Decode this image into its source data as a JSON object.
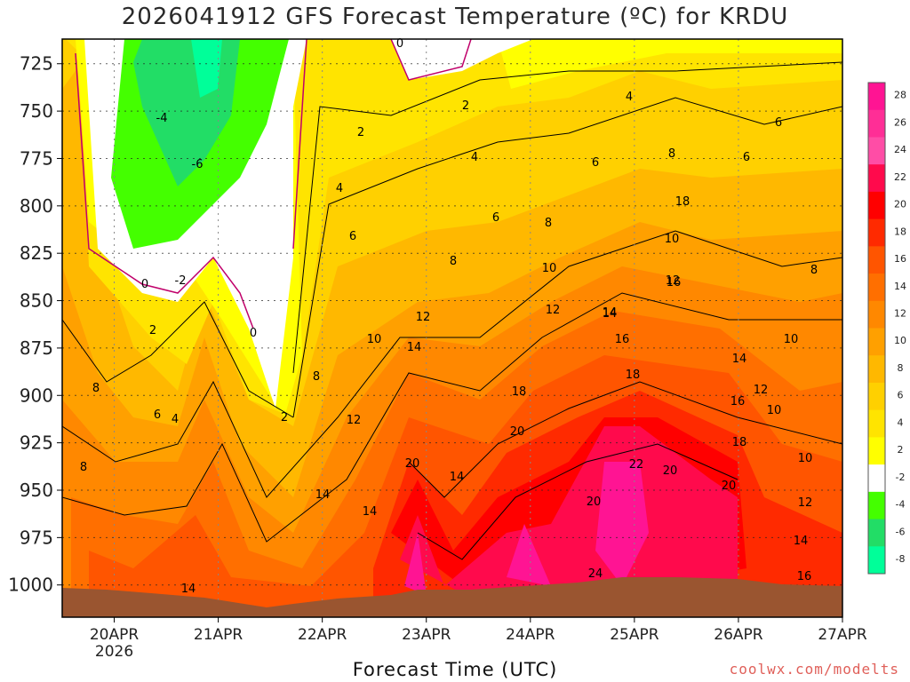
{
  "chart_data": {
    "type": "heatmap",
    "title": "2026041912 GFS Forecast Temperature (ºC) for KRDU",
    "xlabel": "Forecast Time (UTC)",
    "ylabel": "",
    "credit": "coolwx.com/modelts",
    "y_axis": {
      "ticks": [
        725,
        750,
        775,
        800,
        825,
        850,
        875,
        900,
        925,
        950,
        975,
        1000
      ],
      "range": [
        1017,
        712
      ],
      "inverted": true,
      "grid": true
    },
    "x_axis": {
      "ticks": [
        "20APR",
        "21APR",
        "22APR",
        "23APR",
        "24APR",
        "25APR",
        "26APR",
        "27APR"
      ],
      "year_label": "2026",
      "range_days": [
        -0.5,
        7.0
      ],
      "grid": true
    },
    "colorbar": {
      "labels": [
        "28",
        "26",
        "24",
        "22",
        "20",
        "18",
        "16",
        "14",
        "12",
        "10",
        "8",
        "6",
        "4",
        "2",
        "-2",
        "-4",
        "-6",
        "-8"
      ],
      "colors": [
        "#ff1493",
        "#ff2e96",
        "#ff4da6",
        "#ff0a4c",
        "#ff0000",
        "#ff2a00",
        "#ff5500",
        "#ff6f00",
        "#ff8800",
        "#ffa000",
        "#ffb800",
        "#ffd000",
        "#ffe400",
        "#ffff00",
        "#ffffff",
        "#44ff00",
        "#22dd66",
        "#00ff99"
      ]
    },
    "contour_labels": [
      {
        "text": "0"
      },
      {
        "text": "-4"
      },
      {
        "text": "-6"
      },
      {
        "text": "-2"
      },
      {
        "text": "0"
      },
      {
        "text": "2"
      },
      {
        "text": "0"
      },
      {
        "text": "2"
      },
      {
        "text": "2"
      },
      {
        "text": "2"
      },
      {
        "text": "4"
      },
      {
        "text": "6"
      },
      {
        "text": "4"
      },
      {
        "text": "8"
      },
      {
        "text": "6"
      },
      {
        "text": "4"
      },
      {
        "text": "6"
      },
      {
        "text": "8"
      },
      {
        "text": "8"
      },
      {
        "text": "6"
      },
      {
        "text": "10"
      },
      {
        "text": "12"
      },
      {
        "text": "12"
      },
      {
        "text": "14"
      },
      {
        "text": "14"
      },
      {
        "text": "16"
      },
      {
        "text": "18"
      },
      {
        "text": "18"
      },
      {
        "text": "20"
      },
      {
        "text": "20"
      },
      {
        "text": "14"
      },
      {
        "text": "14"
      },
      {
        "text": "10"
      },
      {
        "text": "12"
      },
      {
        "text": "14"
      },
      {
        "text": "16"
      },
      {
        "text": "18"
      },
      {
        "text": "22"
      },
      {
        "text": "20"
      },
      {
        "text": "20"
      },
      {
        "text": "24"
      },
      {
        "text": "20"
      },
      {
        "text": "18"
      },
      {
        "text": "16"
      },
      {
        "text": "14"
      },
      {
        "text": "12"
      },
      {
        "text": "10"
      },
      {
        "text": "10"
      },
      {
        "text": "8"
      },
      {
        "text": "8"
      },
      {
        "text": "10"
      },
      {
        "text": "12"
      },
      {
        "text": "14"
      },
      {
        "text": "16"
      },
      {
        "text": "14"
      },
      {
        "text": "8"
      },
      {
        "text": "6"
      },
      {
        "text": "4"
      },
      {
        "text": "6"
      },
      {
        "text": "8"
      },
      {
        "text": "10"
      },
      {
        "text": "12"
      },
      {
        "text": "14"
      }
    ]
  }
}
